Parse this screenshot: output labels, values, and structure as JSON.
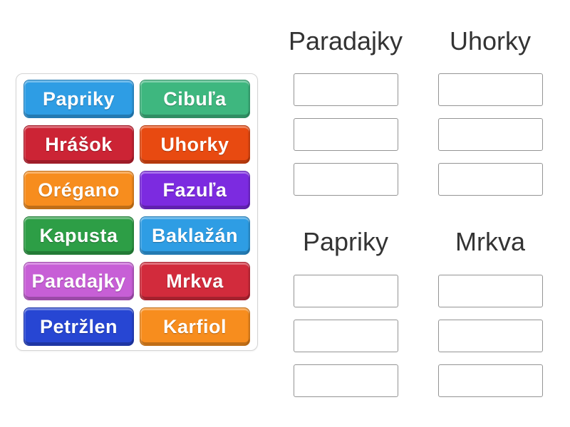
{
  "word_bank": {
    "tiles": [
      {
        "label": "Papriky",
        "color": "#2E9DE4"
      },
      {
        "label": "Cibuľa",
        "color": "#3EB77F"
      },
      {
        "label": "Hrášok",
        "color": "#CC2435"
      },
      {
        "label": "Uhorky",
        "color": "#E84A11"
      },
      {
        "label": "Orégano",
        "color": "#F78D1E"
      },
      {
        "label": "Fazuľa",
        "color": "#7C2BE0"
      },
      {
        "label": "Kapusta",
        "color": "#2D9E46"
      },
      {
        "label": "Baklažán",
        "color": "#2E9DE4"
      },
      {
        "label": "Paradajky",
        "color": "#C75FD6"
      },
      {
        "label": "Mrkva",
        "color": "#D22B3C"
      },
      {
        "label": "Petržlen",
        "color": "#2746D3"
      },
      {
        "label": "Karfiol",
        "color": "#F78D1E"
      }
    ]
  },
  "groups": [
    {
      "title": "Paradajky",
      "slot_count": 3
    },
    {
      "title": "Uhorky",
      "slot_count": 3
    },
    {
      "title": "Papriky",
      "slot_count": 3
    },
    {
      "title": "Mrkva",
      "slot_count": 3
    }
  ],
  "colors": {
    "background": "#ffffff",
    "panel_border": "#d4d4d4",
    "slot_border": "#949494",
    "header_text": "#333333",
    "tile_text": "#ffffff"
  }
}
